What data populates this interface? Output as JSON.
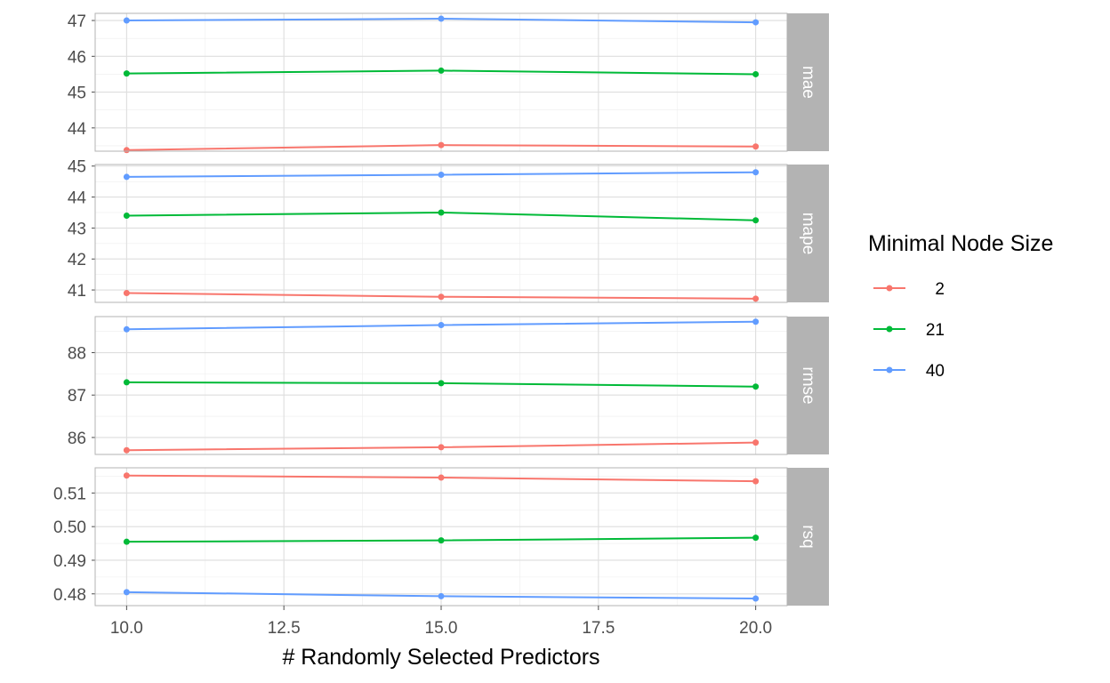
{
  "chart_data": {
    "type": "line",
    "xlabel": "# Randomly Selected Predictors",
    "x": [
      10,
      15,
      20
    ],
    "x_ticks": [
      "10.0",
      "12.5",
      "15.0",
      "17.5",
      "20.0"
    ],
    "x_tick_values": [
      10,
      12.5,
      15,
      17.5,
      20
    ],
    "xlim": [
      9.5,
      20.5
    ],
    "legend": {
      "title": "Minimal Node Size",
      "placement": "right"
    },
    "series_colors": {
      "2": "#F8766D",
      "21": "#00BA38",
      "40": "#619CFF"
    },
    "strip_color": "#B3B3B3",
    "grid": true,
    "panels": [
      {
        "strip": "mae",
        "ylim": [
          43.35,
          47.2
        ],
        "y_ticks": [
          "44",
          "45",
          "46",
          "47"
        ],
        "y_tick_values": [
          44,
          45,
          46,
          47
        ],
        "series": [
          {
            "name": "2",
            "values": [
              43.38,
              43.52,
              43.48
            ]
          },
          {
            "name": "21",
            "values": [
              45.52,
              45.6,
              45.5
            ]
          },
          {
            "name": "40",
            "values": [
              47.0,
              47.05,
              46.95
            ]
          }
        ]
      },
      {
        "strip": "mape",
        "ylim": [
          40.6,
          45.05
        ],
        "y_ticks": [
          "41",
          "42",
          "43",
          "44",
          "45"
        ],
        "y_tick_values": [
          41,
          42,
          43,
          44,
          45
        ],
        "series": [
          {
            "name": "2",
            "values": [
              40.9,
              40.78,
              40.72
            ]
          },
          {
            "name": "21",
            "values": [
              43.4,
              43.5,
              43.25
            ]
          },
          {
            "name": "40",
            "values": [
              44.65,
              44.72,
              44.8
            ]
          }
        ]
      },
      {
        "strip": "rmse",
        "ylim": [
          85.6,
          88.85
        ],
        "y_ticks": [
          "86",
          "87",
          "88"
        ],
        "y_tick_values": [
          86,
          87,
          88
        ],
        "series": [
          {
            "name": "2",
            "values": [
              85.7,
              85.77,
              85.88
            ]
          },
          {
            "name": "21",
            "values": [
              87.3,
              87.28,
              87.2
            ]
          },
          {
            "name": "40",
            "values": [
              88.55,
              88.65,
              88.73
            ]
          }
        ]
      },
      {
        "strip": "rsq",
        "ylim": [
          0.4765,
          0.5175
        ],
        "y_ticks": [
          "0.48",
          "0.49",
          "0.50",
          "0.51"
        ],
        "y_tick_values": [
          0.48,
          0.49,
          0.5,
          0.51
        ],
        "series": [
          {
            "name": "2",
            "values": [
              0.5152,
              0.5146,
              0.5135
            ]
          },
          {
            "name": "21",
            "values": [
              0.4955,
              0.4959,
              0.4967
            ]
          },
          {
            "name": "40",
            "values": [
              0.4805,
              0.4793,
              0.4786
            ]
          }
        ]
      }
    ]
  }
}
